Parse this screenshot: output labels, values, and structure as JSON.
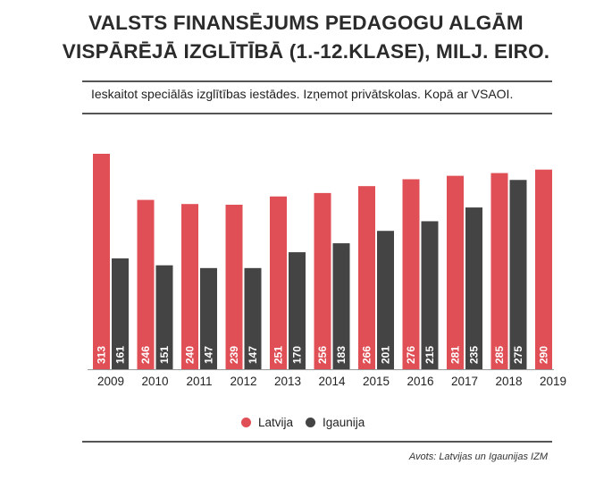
{
  "title_line1": "VALSTS FINANSĒJUMS PEDAGOGU ALGĀM",
  "title_line2": "VISPĀRĒJĀ IZGLĪTĪBĀ (1.-12.KLASE), MILJ. EIRO.",
  "subtitle": "Ieskaitot speciālās izglītības iestādes. Izņemot privātskolas. Kopā ar VSAOI.",
  "source": "Avots: Latvijas un Igaunijas IZM",
  "colors": {
    "latvia": "#e04f55",
    "estonia": "#444444"
  },
  "chart_data": {
    "type": "bar",
    "title": "VALSTS FINANSĒJUMS PEDAGOGU ALGĀM VISPĀRĒJĀ IZGLĪTĪBĀ (1.-12.KLASE), MILJ. EIRO.",
    "categories": [
      "2009",
      "2010",
      "2011",
      "2012",
      "2013",
      "2014",
      "2015",
      "2016",
      "2017",
      "2018",
      "2019"
    ],
    "series": [
      {
        "name": "Latvija",
        "values": [
          313,
          246,
          240,
          239,
          251,
          256,
          266,
          276,
          281,
          285,
          290
        ]
      },
      {
        "name": "Igaunija",
        "values": [
          161,
          151,
          147,
          147,
          170,
          183,
          201,
          215,
          235,
          275,
          null
        ]
      }
    ],
    "ylim": [
      0,
      320
    ],
    "grid": false,
    "legend": "bottom-center"
  }
}
